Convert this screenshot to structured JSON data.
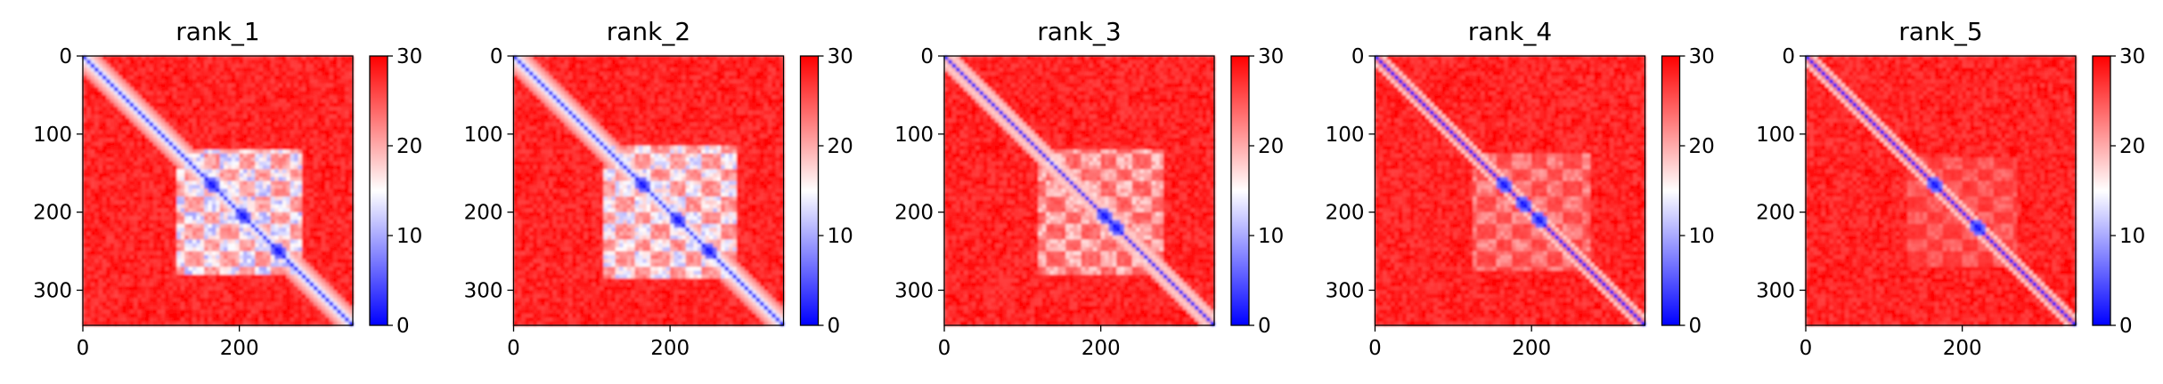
{
  "chart_data": [
    {
      "type": "heatmap",
      "title": "rank_1",
      "xlim": [
        0,
        345
      ],
      "ylim": [
        345,
        0
      ],
      "xticks": [
        0,
        200
      ],
      "yticks": [
        0,
        100,
        200,
        300
      ],
      "colorbar": {
        "range": [
          0,
          30
        ],
        "ticks": [
          0,
          10,
          20,
          30
        ],
        "colormap": [
          "#0000ff",
          "#ffffff",
          "#ff0000"
        ]
      },
      "block": {
        "range": [
          120,
          280
        ],
        "intensity": 0.85
      },
      "diagonal_width": 10,
      "spots": [
        [
          165,
          165
        ],
        [
          205,
          205
        ],
        [
          250,
          250
        ]
      ]
    },
    {
      "type": "heatmap",
      "title": "rank_2",
      "xlim": [
        0,
        345
      ],
      "ylim": [
        345,
        0
      ],
      "xticks": [
        0,
        200
      ],
      "yticks": [
        0,
        100,
        200,
        300
      ],
      "colorbar": {
        "range": [
          0,
          30
        ],
        "ticks": [
          0,
          10,
          20,
          30
        ],
        "colormap": [
          "#0000ff",
          "#ffffff",
          "#ff0000"
        ]
      },
      "block": {
        "range": [
          115,
          285
        ],
        "intensity": 0.8
      },
      "diagonal_width": 10,
      "spots": [
        [
          165,
          165
        ],
        [
          210,
          210
        ],
        [
          250,
          250
        ]
      ]
    },
    {
      "type": "heatmap",
      "title": "rank_3",
      "xlim": [
        0,
        345
      ],
      "ylim": [
        345,
        0
      ],
      "xticks": [
        0,
        200
      ],
      "yticks": [
        0,
        100,
        200,
        300
      ],
      "colorbar": {
        "range": [
          0,
          30
        ],
        "ticks": [
          0,
          10,
          20,
          30
        ],
        "colormap": [
          "#0000ff",
          "#ffffff",
          "#ff0000"
        ]
      },
      "block": {
        "range": [
          120,
          280
        ],
        "intensity": 0.55
      },
      "diagonal_width": 7,
      "spots": [
        [
          205,
          205
        ],
        [
          220,
          220
        ]
      ]
    },
    {
      "type": "heatmap",
      "title": "rank_4",
      "xlim": [
        0,
        345
      ],
      "ylim": [
        345,
        0
      ],
      "xticks": [
        0,
        200
      ],
      "yticks": [
        0,
        100,
        200,
        300
      ],
      "colorbar": {
        "range": [
          0,
          30
        ],
        "ticks": [
          0,
          10,
          20,
          30
        ],
        "colormap": [
          "#0000ff",
          "#ffffff",
          "#ff0000"
        ]
      },
      "block": {
        "range": [
          125,
          275
        ],
        "intensity": 0.4
      },
      "diagonal_width": 6,
      "spots": [
        [
          165,
          165
        ],
        [
          190,
          190
        ],
        [
          210,
          210
        ]
      ]
    },
    {
      "type": "heatmap",
      "title": "rank_5",
      "xlim": [
        0,
        345
      ],
      "ylim": [
        345,
        0
      ],
      "xticks": [
        0,
        200
      ],
      "yticks": [
        0,
        100,
        200,
        300
      ],
      "colorbar": {
        "range": [
          0,
          30
        ],
        "ticks": [
          0,
          10,
          20,
          30
        ],
        "colormap": [
          "#0000ff",
          "#ffffff",
          "#ff0000"
        ]
      },
      "block": {
        "range": [
          130,
          270
        ],
        "intensity": 0.3
      },
      "diagonal_width": 6,
      "spots": [
        [
          165,
          165
        ],
        [
          220,
          220
        ]
      ]
    }
  ]
}
